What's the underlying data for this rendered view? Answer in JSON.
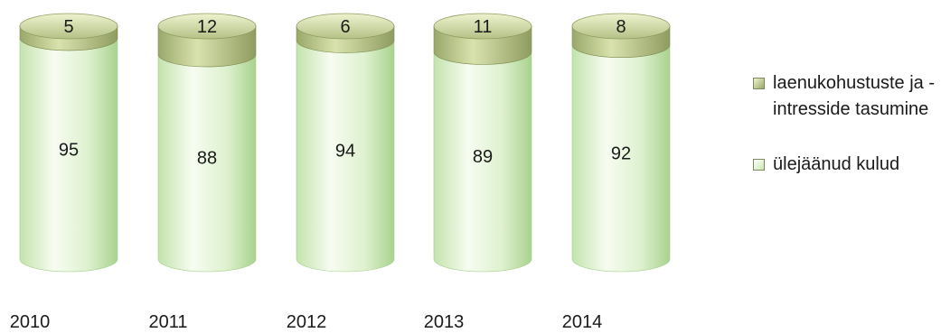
{
  "chart_data": {
    "type": "bar",
    "stacked": true,
    "style": "3d-cylinder",
    "categories": [
      "2010",
      "2011",
      "2012",
      "2013",
      "2014"
    ],
    "series": [
      {
        "name": "ülejäänud kulud",
        "values": [
          95,
          88,
          94,
          89,
          92
        ],
        "color": "#c9e8b4"
      },
      {
        "name": "laenukohustuste ja -intresside tasumine",
        "values": [
          5,
          12,
          6,
          11,
          8
        ],
        "color": "#b7c38a"
      }
    ],
    "ylim": [
      0,
      100
    ],
    "title": "",
    "xlabel": "",
    "ylabel": "",
    "grid": false,
    "legend_position": "right"
  },
  "legend": [
    {
      "label": "laenukohustuste ja -intresside tasumine"
    },
    {
      "label": "ülejäänud kulud"
    }
  ]
}
